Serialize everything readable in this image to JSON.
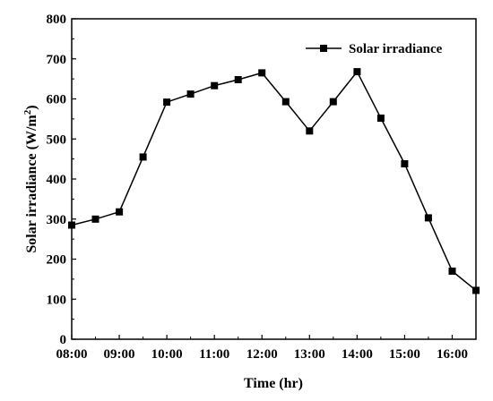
{
  "chart_data": {
    "type": "line",
    "xlabel": "Time (hr)",
    "ylabel": "Solar irradiance (W/m",
    "ylabel_sup": "2",
    "ylabel_end": ")",
    "ylim": [
      0,
      800
    ],
    "xlim": [
      "08:00",
      "16:30"
    ],
    "x_ticks": [
      "08:00",
      "09:00",
      "10:00",
      "11:00",
      "12:00",
      "13:00",
      "14:00",
      "15:00",
      "16:00"
    ],
    "y_ticks": [
      0,
      100,
      200,
      300,
      400,
      500,
      600,
      700,
      800
    ],
    "legend_position": "top-right",
    "grid": false,
    "series": [
      {
        "name": "Solar irradiance",
        "color": "#000000",
        "marker": "square",
        "x": [
          "08:00",
          "08:30",
          "09:00",
          "09:30",
          "10:00",
          "10:30",
          "11:00",
          "11:30",
          "12:00",
          "12:30",
          "13:00",
          "13:30",
          "14:00",
          "14:30",
          "15:00",
          "15:30",
          "16:00",
          "16:30"
        ],
        "values": [
          285,
          300,
          318,
          455,
          592,
          612,
          633,
          648,
          665,
          593,
          520,
          593,
          668,
          552,
          438,
          303,
          170,
          122
        ]
      }
    ]
  }
}
